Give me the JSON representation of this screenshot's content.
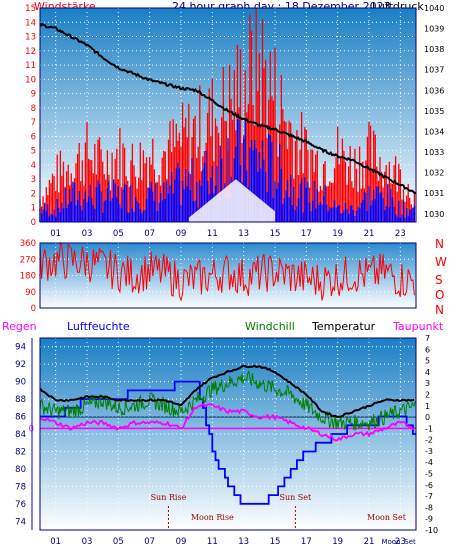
{
  "header": {
    "left_label": "Windstärke",
    "title": "24 hour graph day : 18 Dezember 2023",
    "right_label": "Luftdruck"
  },
  "colors": {
    "wind": "#ff0000",
    "gust_bar": "#ff0000",
    "wind_avg": "#0000ff",
    "pressure": "#000000",
    "temperature": "#000000",
    "windchill": "#008000",
    "dewpoint": "#ff00ff",
    "humidity": "#0000ff",
    "rain": "#ff00ff",
    "frame": "#000080",
    "sky_top": "#1a7fc4",
    "sky_bottom": "#ffffff"
  },
  "legend2": {
    "regen": "Regen",
    "luftfeuchte": "Luftfeuchte",
    "windchill": "Windchill",
    "temperatur": "Temperatur",
    "taupunkt": "Taupunkt"
  },
  "compass": [
    "N",
    "W",
    "S",
    "O",
    "N"
  ],
  "annotations": {
    "sun_rise": "Sun Rise",
    "sun_set": "Sun Set",
    "moon_rise": "Moon Rise",
    "moon_set": "Moon Set",
    "moon_rise_short": "Moon",
    "sun_set_short": "Set"
  },
  "rain_zero_label": "0",
  "chart_data": [
    {
      "type": "line",
      "title": "24 hour graph day : 18 Dezember 2023",
      "x_ticks": [
        "01",
        "03",
        "05",
        "07",
        "09",
        "11",
        "13",
        "15",
        "17",
        "19",
        "21",
        "23"
      ],
      "x_range_hours": [
        0,
        24
      ],
      "left_axis": {
        "label": "Windstärke",
        "ticks": [
          0,
          1,
          2,
          3,
          4,
          5,
          6,
          7,
          8,
          9,
          10,
          11,
          12,
          13,
          14,
          15
        ],
        "ylim": [
          0,
          15
        ]
      },
      "right_axis": {
        "label": "Luftdruck",
        "ticks": [
          1030,
          1031,
          1032,
          1033,
          1034,
          1035,
          1036,
          1037,
          1038,
          1039,
          1040
        ],
        "ylim": [
          1029.6,
          1040
        ]
      },
      "series": [
        {
          "name": "Luftdruck",
          "hours": [
            0,
            1,
            2,
            3,
            4,
            5,
            6,
            7,
            8,
            9,
            10,
            11,
            12,
            13,
            14,
            15,
            16,
            17,
            18,
            19,
            20,
            21,
            22,
            23,
            24
          ],
          "values": [
            1039.2,
            1039.0,
            1038.6,
            1038.2,
            1037.6,
            1037.1,
            1036.8,
            1036.5,
            1036.3,
            1036.1,
            1036.0,
            1035.5,
            1035.0,
            1034.6,
            1034.3,
            1034.1,
            1033.8,
            1033.5,
            1033.1,
            1032.8,
            1032.6,
            1032.2,
            1031.8,
            1031.4,
            1031.0
          ]
        },
        {
          "name": "Windstärke Böen",
          "hours": [
            0,
            1,
            2,
            3,
            4,
            5,
            6,
            7,
            8,
            9,
            10,
            11,
            12,
            13,
            14,
            15,
            16,
            17,
            18,
            19,
            20,
            21,
            22,
            23,
            24
          ],
          "values": [
            2,
            4,
            5,
            6,
            5,
            6,
            5,
            6,
            6,
            7,
            8,
            9,
            10,
            12,
            14,
            11,
            8,
            6,
            5,
            6,
            5,
            6,
            5,
            4,
            2
          ]
        },
        {
          "name": "Windstärke Mittel",
          "hours": [
            0,
            1,
            2,
            3,
            4,
            5,
            6,
            7,
            8,
            9,
            10,
            11,
            12,
            13,
            14,
            15,
            16,
            17,
            18,
            19,
            20,
            21,
            22,
            23,
            24
          ],
          "values": [
            1,
            1,
            2,
            2,
            2,
            2,
            2,
            2,
            2,
            3,
            3,
            4,
            5,
            5,
            5,
            4,
            3,
            2,
            2,
            1,
            1,
            2,
            2,
            1,
            1
          ]
        }
      ]
    },
    {
      "type": "line",
      "title": "",
      "y_ticks": [
        0,
        90,
        180,
        270,
        360
      ],
      "ylim": [
        0,
        360
      ],
      "series": [
        {
          "hours": [
            0,
            1,
            2,
            3,
            4,
            5,
            6,
            7,
            8,
            9,
            10,
            11,
            12,
            13,
            14,
            15,
            16,
            17,
            18,
            19,
            20,
            21,
            22,
            23,
            24
          ],
          "values": [
            250,
            260,
            260,
            255,
            230,
            200,
            180,
            210,
            190,
            150,
            160,
            180,
            200,
            170,
            190,
            200,
            180,
            160,
            150,
            170,
            190,
            180,
            200,
            160,
            150
          ]
        }
      ]
    },
    {
      "type": "line",
      "title": "",
      "x_ticks": [
        "01",
        "03",
        "05",
        "07",
        "09",
        "11",
        "13",
        "15",
        "17",
        "19",
        "21",
        "23"
      ],
      "left_axis": {
        "label": "Luftfeuchte",
        "ticks": [
          74,
          76,
          78,
          80,
          82,
          84,
          86,
          88,
          90,
          92,
          94
        ],
        "ylim": [
          73,
          95
        ]
      },
      "right_axis": {
        "label": "Temperatur",
        "ticks": [
          7,
          6,
          5,
          4,
          3,
          2,
          1,
          0,
          -1,
          -2,
          -3,
          -4,
          -5,
          -6,
          -7,
          -8,
          -9,
          -10
        ],
        "ylim": [
          -10,
          7
        ]
      },
      "series": [
        {
          "name": "Luftfeuchte",
          "hours": [
            0,
            1,
            2,
            3,
            4,
            5,
            6,
            7,
            8,
            9,
            10,
            11,
            12,
            13,
            14,
            15,
            16,
            17,
            18,
            19,
            20,
            21,
            22,
            23,
            24
          ],
          "values": [
            86,
            86,
            87,
            88,
            88,
            88,
            89,
            89,
            89,
            90,
            90,
            82,
            78,
            76,
            76,
            77,
            80,
            82,
            83,
            84,
            85,
            85,
            86,
            86,
            84
          ]
        },
        {
          "name": "Temperatur",
          "hours": [
            0,
            1,
            2,
            3,
            4,
            5,
            6,
            7,
            8,
            9,
            10,
            11,
            12,
            13,
            14,
            15,
            16,
            17,
            18,
            19,
            20,
            21,
            22,
            23,
            24
          ],
          "values": [
            2.5,
            1.5,
            1.5,
            1.8,
            1.8,
            1.5,
            1.5,
            1.5,
            1.5,
            1.0,
            2.5,
            3.5,
            4.0,
            4.5,
            4.5,
            4.0,
            3.0,
            2.0,
            0.5,
            0.0,
            0.5,
            1.0,
            1.5,
            1.5,
            1.5
          ]
        },
        {
          "name": "Windchill",
          "hours": [
            0,
            1,
            2,
            3,
            4,
            5,
            6,
            7,
            8,
            9,
            10,
            11,
            12,
            13,
            14,
            15,
            16,
            17,
            18,
            19,
            20,
            21,
            22,
            23,
            24
          ],
          "values": [
            1.0,
            0.5,
            0.5,
            1.0,
            1.5,
            0.8,
            1.0,
            1.5,
            1.0,
            0.5,
            1.5,
            2.5,
            3.0,
            3.5,
            3.0,
            2.5,
            2.0,
            1.0,
            0.0,
            -0.5,
            -0.5,
            -0.5,
            0.0,
            0.5,
            1.0
          ]
        },
        {
          "name": "Taupunkt",
          "hours": [
            0,
            1,
            2,
            3,
            4,
            5,
            6,
            7,
            8,
            9,
            10,
            11,
            12,
            13,
            14,
            15,
            16,
            17,
            18,
            19,
            20,
            21,
            22,
            23,
            24
          ],
          "values": [
            0.0,
            -0.5,
            -1.0,
            -0.5,
            -0.5,
            -1.0,
            -0.5,
            -0.5,
            -0.5,
            -1.0,
            1.0,
            1.0,
            0.5,
            0.5,
            0.0,
            0.0,
            -0.5,
            -1.0,
            -1.5,
            -2.0,
            -1.5,
            -1.5,
            -1.0,
            -0.5,
            -1.0
          ]
        },
        {
          "name": "Regen",
          "hours": [
            0,
            24
          ],
          "values": [
            0,
            0
          ]
        }
      ],
      "events": [
        {
          "name": "Sun Rise",
          "hour": 8.2
        },
        {
          "name": "Moon Rise",
          "hour": 11.0
        },
        {
          "name": "Sun Set",
          "hour": 16.3
        },
        {
          "name": "Moon Set",
          "hour": 22.5
        }
      ]
    }
  ]
}
